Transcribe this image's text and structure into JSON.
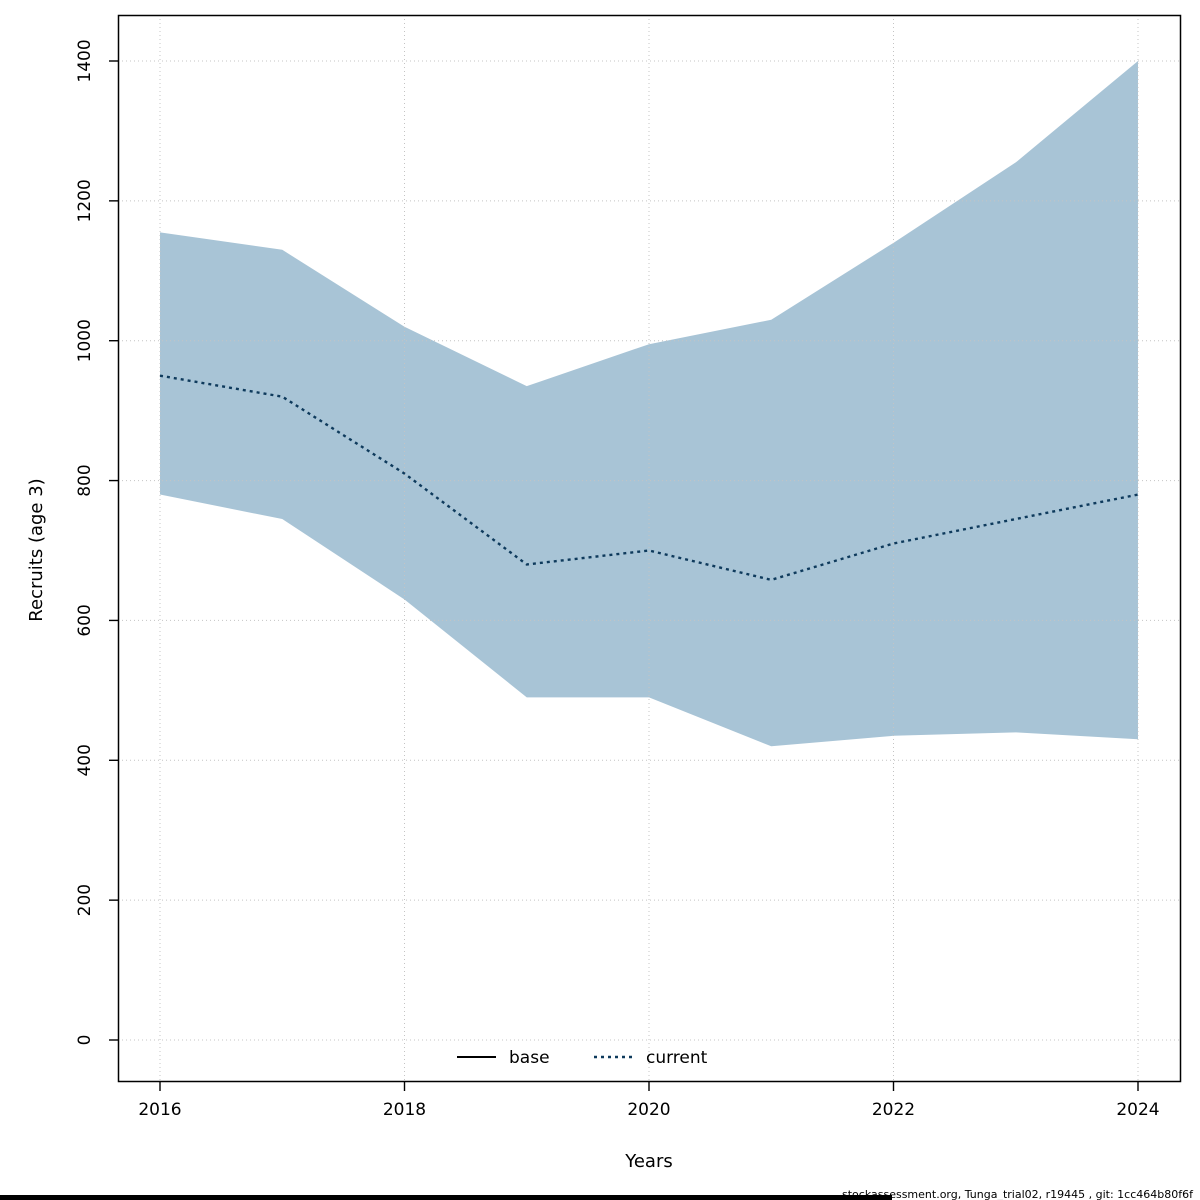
{
  "figure": {
    "footer": "stockassessment.org, Tunga_trial02, r19445 , git: 1cc464b80f6f"
  },
  "chart_data": {
    "type": "area",
    "title": "",
    "xlabel": "Years",
    "ylabel": "Recruits (age 3)",
    "x": [
      2016,
      2017,
      2018,
      2019,
      2020,
      2021,
      2022,
      2023,
      2024
    ],
    "x_ticks": [
      2016,
      2018,
      2020,
      2022,
      2024
    ],
    "y_ticks": [
      0,
      200,
      400,
      600,
      800,
      1000,
      1200,
      1400
    ],
    "xlim": [
      2016,
      2024
    ],
    "ylim": [
      0,
      1400
    ],
    "grid": true,
    "legend_position": "bottom-center",
    "series": [
      {
        "name": "current",
        "style": "dotted",
        "color": "#0e3a5c",
        "values": [
          950,
          920,
          810,
          680,
          700,
          658,
          710,
          745,
          780
        ]
      }
    ],
    "band": {
      "name": "current confidence interval",
      "color": "#a8c4d6",
      "upper": [
        1155,
        1130,
        1020,
        935,
        995,
        1030,
        1140,
        1255,
        1400
      ],
      "lower": [
        780,
        745,
        630,
        490,
        490,
        420,
        435,
        440,
        430
      ]
    },
    "legend": [
      {
        "label": "base",
        "style": "solid",
        "color": "#000000"
      },
      {
        "label": "current",
        "style": "dotted",
        "color": "#0e3a5c"
      }
    ]
  }
}
